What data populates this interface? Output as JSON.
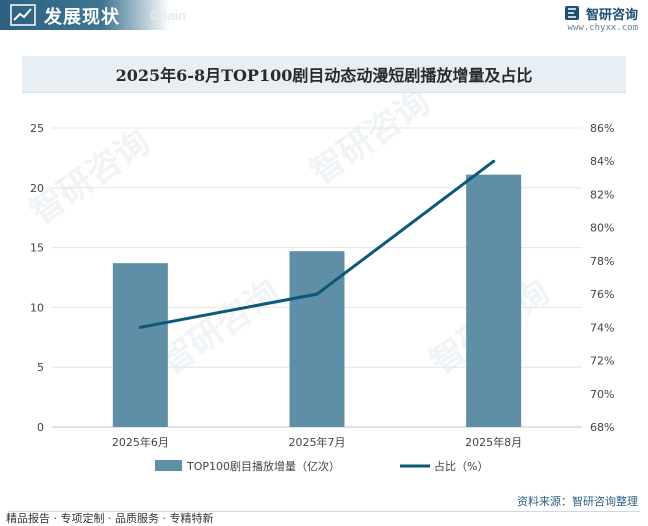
{
  "header": {
    "title": "发展现状",
    "subtitle": "Chain",
    "brand_name": "智研咨询",
    "brand_url": "www.chyxx.com"
  },
  "chart_data": {
    "type": "bar",
    "title": "2025年6-8月TOP100剧目动态动漫短剧播放增量及占比",
    "categories": [
      "2025年6月",
      "2025年7月",
      "2025年8月"
    ],
    "series": [
      {
        "name": "TOP100剧目播放增量（亿次）",
        "type": "bar",
        "axis": "left",
        "values": [
          13.7,
          14.7,
          21.1
        ],
        "color": "#5e8fa6"
      },
      {
        "name": "占比（%）",
        "type": "line",
        "axis": "right",
        "values": [
          74.0,
          76.0,
          84.0
        ],
        "color": "#0c5878"
      }
    ],
    "y_left": {
      "min": 0,
      "max": 25,
      "ticks": [
        "0",
        "5",
        "10",
        "15",
        "20",
        "25"
      ]
    },
    "y_right": {
      "min": 68,
      "max": 86,
      "ticks": [
        "68%",
        "70%",
        "72%",
        "74%",
        "76%",
        "78%",
        "80%",
        "82%",
        "84%",
        "86%"
      ]
    },
    "grid": true,
    "legend_position": "bottom"
  },
  "footer": {
    "left": "精品报告 · 专项定制 · 品质服务 · 专精特新",
    "source": "资料来源：智研咨询整理"
  }
}
